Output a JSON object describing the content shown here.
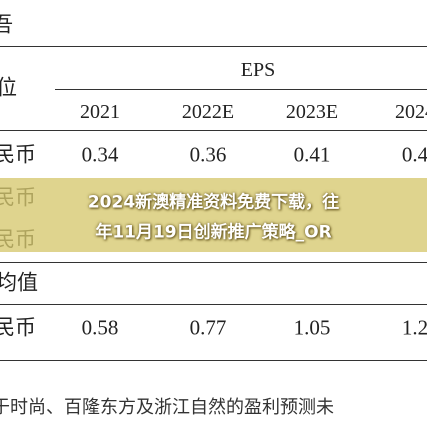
{
  "header": {
    "title": "吾",
    "unit": "位"
  },
  "table": {
    "group": "EPS",
    "columns": [
      "2021",
      "2022E",
      "2023E",
      "2024"
    ],
    "section": "均值",
    "rows": [
      {
        "label": "民币",
        "values": [
          "0.34",
          "0.36",
          "0.41",
          "0.4"
        ]
      },
      {
        "label": "民币",
        "values": []
      },
      {
        "label": "民币",
        "values": []
      },
      {
        "label": "民币",
        "values": [
          "0.58",
          "0.77",
          "1.05",
          "1.2"
        ]
      }
    ]
  },
  "banner": {
    "lines": [
      "2024新澳精准资料免费下载，往",
      "年11月19日创新推广策略_OR"
    ]
  },
  "footer": {
    "text": "于时尚、百隆东方及浙江自然的盈利预测未"
  }
}
